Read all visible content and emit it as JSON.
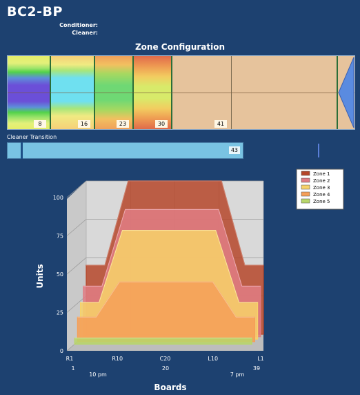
{
  "header": {
    "title": "BC2-BP",
    "conditioner_label": "Conditioner:",
    "cleaner_label": "Cleaner:"
  },
  "zone_config": {
    "title": "Zone Configuration",
    "segments": [
      {
        "label": "8"
      },
      {
        "label": "16"
      },
      {
        "label": "23"
      },
      {
        "label": "30"
      },
      {
        "label": "41"
      }
    ]
  },
  "cleaner_transition": {
    "label": "Cleaner Transition",
    "value": "43"
  },
  "chart_data": {
    "type": "area",
    "ylabel": "Units",
    "xlabel": "Boards",
    "ylim": [
      0,
      100
    ],
    "y_ticks": [
      "0",
      "25",
      "50",
      "75",
      "100"
    ],
    "x_ticks": [
      "R1",
      "R10",
      "C20",
      "L10",
      "L1"
    ],
    "x_ticks_secondary": [
      "1",
      "10 pm",
      "20",
      "7 pm",
      "39"
    ],
    "x": [
      1,
      5,
      10,
      20,
      30,
      35,
      39
    ],
    "series": [
      {
        "name": "Zone 1",
        "color": "#b5462a",
        "values": [
          45,
          45,
          100,
          100,
          100,
          45,
          45
        ]
      },
      {
        "name": "Zone 2",
        "color": "#e07c84",
        "values": [
          33,
          33,
          83,
          83,
          83,
          33,
          33
        ]
      },
      {
        "name": "Zone 3",
        "color": "#f7d26a",
        "values": [
          24,
          24,
          71,
          71,
          71,
          24,
          24
        ]
      },
      {
        "name": "Zone 4",
        "color": "#f59f58",
        "values": [
          16,
          16,
          39,
          39,
          39,
          16,
          16
        ]
      },
      {
        "name": "Zone 5",
        "color": "#b8d66a",
        "values": [
          4,
          4,
          4,
          4,
          4,
          4,
          4
        ]
      }
    ],
    "grid": true,
    "legend": "top-right"
  }
}
